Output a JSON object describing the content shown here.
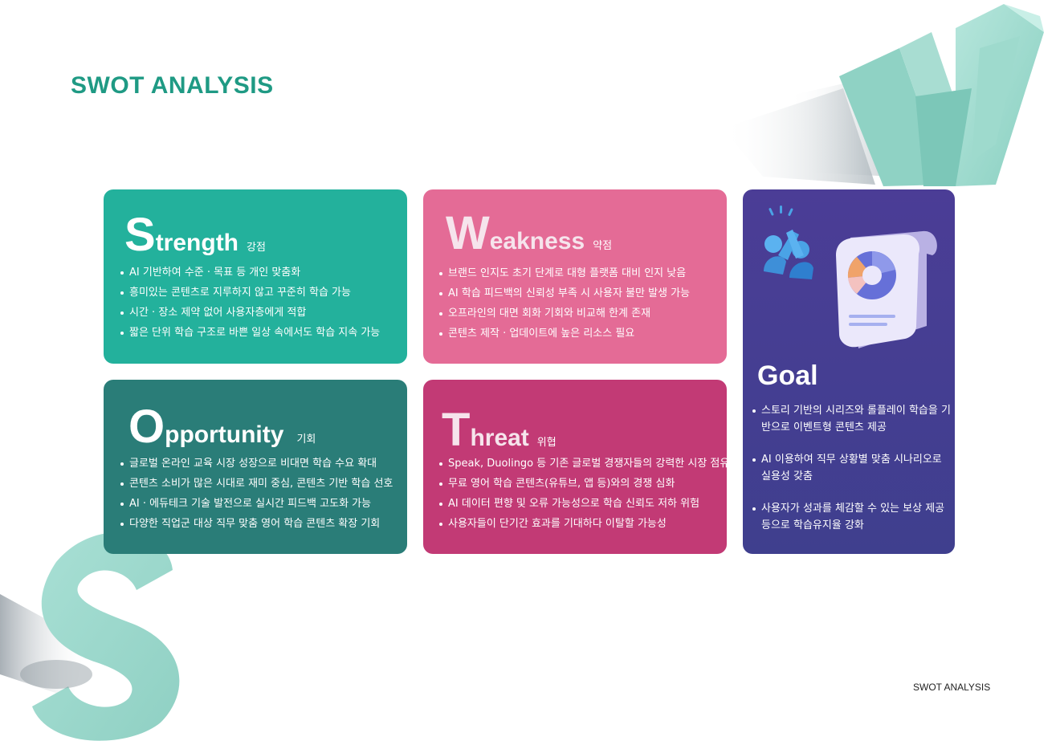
{
  "page": {
    "title": "SWOT ANALYSIS",
    "footer": "SWOT ANALYSIS"
  },
  "colors": {
    "title": "#1f9a84",
    "strength": "#23b19c",
    "weakness": "#e46b96",
    "opportunity": "#2a7d78",
    "threat": "#c23a75",
    "goal": "#4b3d96"
  },
  "strength": {
    "initial": "S",
    "rest": "trength",
    "ko": "강점",
    "items": [
      "AI 기반하여 수준 · 목표 등 개인 맞춤화",
      "흥미있는 콘텐츠로 지루하지 않고 꾸준히 학습 가능",
      "시간 · 장소 제약 없어 사용자층에게 적합",
      "짧은 단위 학습 구조로 바쁜 일상 속에서도 학습 지속 가능"
    ]
  },
  "weakness": {
    "initial": "W",
    "rest": "eakness",
    "ko": "약점",
    "items": [
      "브랜드 인지도 초기 단계로 대형 플랫폼 대비 인지 낮음",
      "AI 학습 피드백의 신뢰성 부족 시 사용자 불만 발생 가능",
      "오프라인의 대면 회화 기회와 비교해 한계 존재",
      "콘텐츠 제작 · 업데이트에 높은 리소스 필요"
    ]
  },
  "opportunity": {
    "initial": "O",
    "rest": "pportunity",
    "ko": "기회",
    "items": [
      "글로벌 온라인 교육 시장 성장으로 비대면 학습 수요 확대",
      "콘텐츠 소비가 많은 시대로 재미 중심, 콘텐츠 기반 학습 선호",
      "AI · 에듀테크 기술 발전으로 실시간 피드백 고도화 가능",
      "다양한 직업군 대상 직무 맞춤 영어 학습 콘텐츠 확장 기회"
    ]
  },
  "threat": {
    "initial": "T",
    "rest": "hreat",
    "ko": "위협",
    "items": [
      "Speak, Duolingo 등 기존 글로벌 경쟁자들의 강력한 시장 점유율",
      "무료 영어 학습 콘텐츠(유튜브, 앱 등)와의 경쟁 심화",
      "AI 데이터 편향 및 오류 가능성으로 학습 신뢰도 저하 위험",
      "사용자들이 단기간 효과를 기대하다 이탈할 가능성"
    ]
  },
  "goal": {
    "title": "Goal",
    "illustration_icons": [
      "high-five-icon",
      "report-pie-chart-icon"
    ],
    "items": [
      "스토리 기반의 시리즈와 롤플레이 학습을 기반으로 이벤트형 콘텐츠 제공",
      "AI 이용하여 직무 상황별 맞춤 시나리오로 실용성 갖춤",
      "사용자가 성과를 체감할 수 있는 보상 제공 등으로 학습유지율 강화"
    ]
  }
}
